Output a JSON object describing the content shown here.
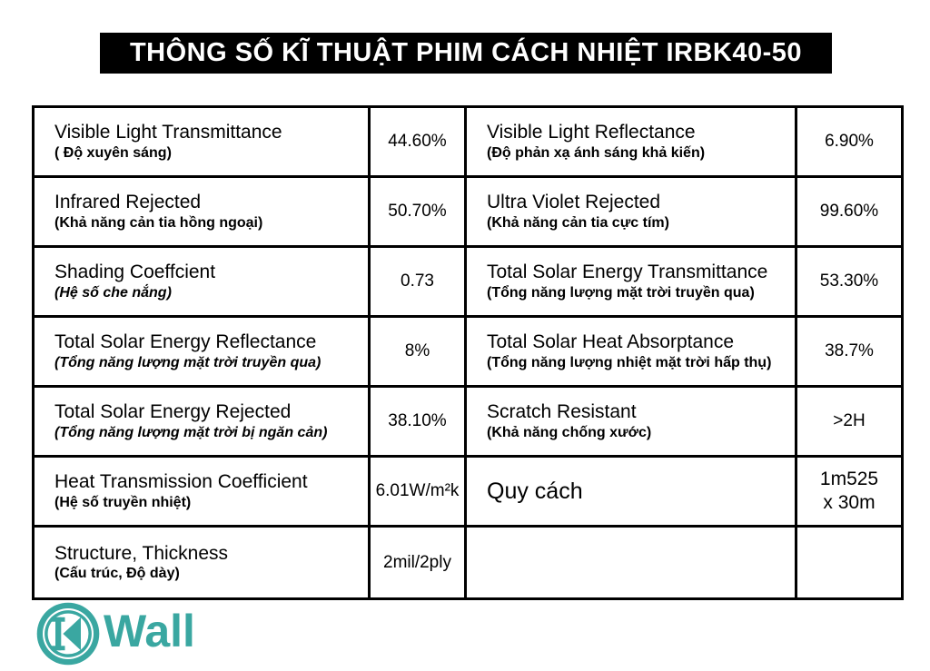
{
  "title": "THÔNG SỐ KĨ THUẬT PHIM CÁCH NHIỆT IRBK40-50",
  "colors": {
    "accent_teal": "#3aa7a1",
    "banner_bg": "#000000",
    "border": "#000000"
  },
  "logo": {
    "icon": "k-in-circle-icon",
    "text": "Wall"
  },
  "table": {
    "rows": [
      {
        "left": {
          "en": "Visible Light Transmittance",
          "vi": "( Độ xuyên sáng)",
          "vi_italic": false
        },
        "left_value": "44.60%",
        "right": {
          "en": "Visible Light Reflectance",
          "vi": "(Độ phản xạ ánh sáng khả kiến)",
          "vi_italic": false
        },
        "right_value": "6.90%"
      },
      {
        "left": {
          "en": "Infrared Rejected",
          "vi": "(Khả năng cản tia hồng ngoại)",
          "vi_italic": false
        },
        "left_value": "50.70%",
        "right": {
          "en": "Ultra Violet Rejected",
          "vi": "(Khả năng cản tia cực tím)",
          "vi_italic": false
        },
        "right_value": "99.60%"
      },
      {
        "left": {
          "en": "Shading Coeffcient",
          "vi": "(Hệ số che nắng)",
          "vi_italic": true
        },
        "left_value": "0.73",
        "right": {
          "en": "Total Solar Energy Transmittance",
          "vi": "(Tổng năng lượng mặt trời truyền qua)",
          "vi_italic": false
        },
        "right_value": "53.30%"
      },
      {
        "left": {
          "en": "Total Solar Energy Reflectance",
          "vi": "(Tổng năng lượng mặt trời truyền qua)",
          "vi_italic": true
        },
        "left_value": "8%",
        "right": {
          "en": "Total Solar Heat Absorptance",
          "vi": "(Tổng năng lượng nhiệt mặt trời hấp thụ)",
          "vi_italic": false
        },
        "right_value": "38.7%"
      },
      {
        "left": {
          "en": "Total Solar Energy Rejected",
          "vi": "(Tổng năng lượng mặt trời bị ngăn cản)",
          "vi_italic": true
        },
        "left_value": "38.10%",
        "right": {
          "en": "Scratch Resistant",
          "vi": "(Khả năng chống xước)",
          "vi_italic": false
        },
        "right_value": ">2H"
      },
      {
        "left": {
          "en": "Heat Transmission Coefficient",
          "vi": "(Hệ số truyền nhiệt)",
          "vi_italic": false
        },
        "left_value": "6.01W/m²k",
        "right": {
          "en": "Quy cách",
          "vi": "",
          "vi_italic": false,
          "large": true
        },
        "right_value": "1m525\nx 30m",
        "right_value_large": true
      },
      {
        "left": {
          "en": "Structure, Thickness",
          "vi": "(Cấu trúc, Độ dày)",
          "vi_italic": false
        },
        "left_value": "2mil/2ply",
        "right": {
          "en": "",
          "vi": "",
          "vi_italic": false
        },
        "right_value": ""
      }
    ]
  }
}
